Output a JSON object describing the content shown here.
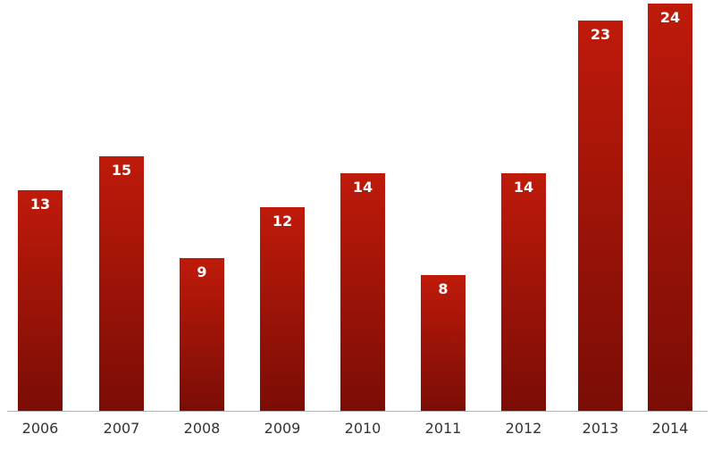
{
  "chart_data": {
    "type": "bar",
    "title": "",
    "xlabel": "",
    "ylabel": "",
    "categories": [
      "2006",
      "2007",
      "2008",
      "2009",
      "2010",
      "2011",
      "2012",
      "2013",
      "2014"
    ],
    "values": [
      13,
      15,
      9,
      12,
      14,
      8,
      14,
      23,
      24
    ],
    "value_labels": [
      "13",
      "15",
      "9",
      "12",
      "14",
      "8",
      "14",
      "23",
      "24"
    ],
    "ylim": [
      0,
      24
    ],
    "grid": false,
    "legend": "none",
    "colors": {
      "bar_top": "#bf1a0a",
      "bar_bottom": "#7a0d06",
      "value_label": "#ffffff",
      "tick_label": "#333333",
      "axis_line": "#b0b0b0"
    }
  }
}
